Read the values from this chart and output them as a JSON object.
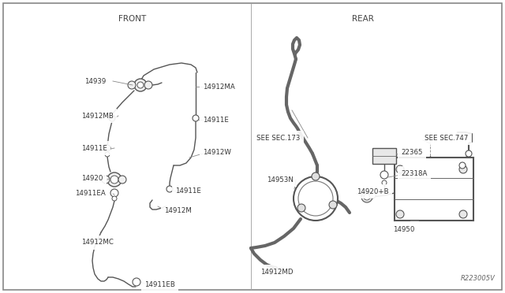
{
  "background_color": "#ffffff",
  "line_color": "#555555",
  "label_color": "#333333",
  "front_label": "FRONT",
  "rear_label": "REAR",
  "ref_code": "R223005V"
}
